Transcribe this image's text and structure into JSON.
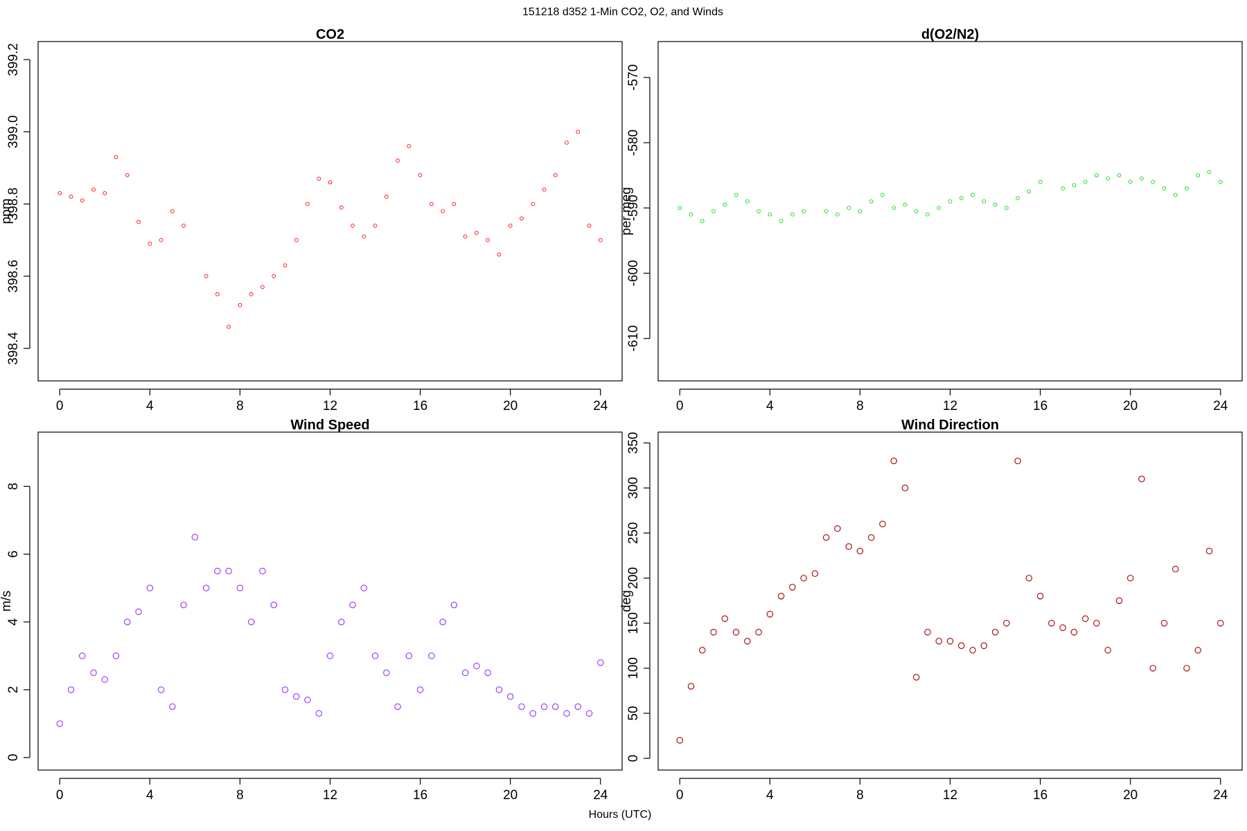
{
  "figure": {
    "suptitle": "151218   d352   1-Min CO2, O2, and Winds",
    "xlabel": "Hours (UTC)"
  },
  "chart_data": [
    {
      "type": "scatter",
      "title": "CO2",
      "ylabel": "ppm",
      "xlim": [
        -0.96,
        24.96
      ],
      "ylim": [
        398.31,
        399.25
      ],
      "xticks": [
        0,
        4,
        8,
        12,
        16,
        20,
        24
      ],
      "yticks": [
        398.4,
        398.6,
        398.8,
        399.0,
        399.2
      ],
      "ytick_labels": [
        "398.4",
        "398.6",
        "398.8",
        "399.0",
        "399.2"
      ],
      "color": "#ff0000",
      "marker_radius_hint": "small",
      "x": [
        0.0,
        0.5,
        1.0,
        1.5,
        2.0,
        2.5,
        3.0,
        3.5,
        4.0,
        4.5,
        5.0,
        5.5,
        6.5,
        7.0,
        7.5,
        8.0,
        8.5,
        9.0,
        9.5,
        10.0,
        10.5,
        11.0,
        11.5,
        12.0,
        12.5,
        13.0,
        13.5,
        14.0,
        14.5,
        15.0,
        15.5,
        16.0,
        16.5,
        17.0,
        17.5,
        18.0,
        18.5,
        19.0,
        19.5,
        20.0,
        20.5,
        21.0,
        21.5,
        22.0,
        22.5,
        23.0,
        23.5,
        24.0
      ],
      "y": [
        398.83,
        398.82,
        398.81,
        398.84,
        398.83,
        398.93,
        398.88,
        398.75,
        398.69,
        398.7,
        398.78,
        398.74,
        398.6,
        398.55,
        398.46,
        398.52,
        398.55,
        398.57,
        398.6,
        398.63,
        398.7,
        398.8,
        398.87,
        398.86,
        398.79,
        398.74,
        398.71,
        398.74,
        398.82,
        398.92,
        398.96,
        398.88,
        398.8,
        398.78,
        398.8,
        398.71,
        398.72,
        398.7,
        398.66,
        398.74,
        398.76,
        398.8,
        398.84,
        398.88,
        398.97,
        399.0,
        398.74,
        398.7
      ]
    },
    {
      "type": "scatter",
      "title": "d(O2/N2)",
      "ylabel": "per meg",
      "xlim": [
        -0.96,
        24.96
      ],
      "ylim": [
        -616.5,
        -564.5
      ],
      "xticks": [
        0,
        4,
        8,
        12,
        16,
        20,
        24
      ],
      "yticks": [
        -570,
        -580,
        -590,
        -600,
        -610
      ],
      "ytick_labels": [
        "-570",
        "-580",
        "-590",
        "-600",
        "-610"
      ],
      "color": "#00dd00",
      "marker_radius_hint": "small",
      "x": [
        0.0,
        0.5,
        1.0,
        1.5,
        2.0,
        2.5,
        3.0,
        3.5,
        4.0,
        4.5,
        5.0,
        5.5,
        6.5,
        7.0,
        7.5,
        8.0,
        8.5,
        9.0,
        9.5,
        10.0,
        10.5,
        11.0,
        11.5,
        12.0,
        12.5,
        13.0,
        13.5,
        14.0,
        14.5,
        15.0,
        15.5,
        16.0,
        17.0,
        17.5,
        18.0,
        18.5,
        19.0,
        19.5,
        20.0,
        20.5,
        21.0,
        21.5,
        22.0,
        22.5,
        23.0,
        23.5,
        24.0
      ],
      "y": [
        -590.0,
        -591.0,
        -592.0,
        -590.5,
        -589.5,
        -588.0,
        -589.0,
        -590.5,
        -591.0,
        -592.0,
        -591.0,
        -590.5,
        -590.5,
        -591.0,
        -590.0,
        -590.5,
        -589.0,
        -588.0,
        -590.0,
        -589.5,
        -590.5,
        -591.0,
        -590.0,
        -589.0,
        -588.5,
        -588.0,
        -589.0,
        -589.5,
        -590.0,
        -588.5,
        -587.5,
        -586.0,
        -587.0,
        -586.5,
        -586.0,
        -585.0,
        -585.5,
        -585.0,
        -586.0,
        -585.5,
        -586.0,
        -587.0,
        -588.0,
        -587.0,
        -585.0,
        -584.5,
        -586.0
      ]
    },
    {
      "type": "scatter",
      "title": "Wind Speed",
      "ylabel": "m/s",
      "xlim": [
        -0.96,
        24.96
      ],
      "ylim": [
        -0.37,
        9.6
      ],
      "xticks": [
        0,
        4,
        8,
        12,
        16,
        20,
        24
      ],
      "yticks": [
        0,
        2,
        4,
        6,
        8
      ],
      "ytick_labels": [
        "0",
        "2",
        "4",
        "6",
        "8"
      ],
      "color": "#9b30ff",
      "marker_radius_hint": "large",
      "x": [
        0.0,
        0.5,
        1.0,
        1.5,
        2.0,
        2.5,
        3.0,
        3.5,
        4.0,
        4.5,
        5.0,
        5.5,
        6.0,
        6.5,
        7.0,
        7.5,
        8.0,
        8.5,
        9.0,
        9.5,
        10.0,
        10.5,
        11.0,
        11.5,
        12.0,
        12.5,
        13.0,
        13.5,
        14.0,
        14.5,
        15.0,
        15.5,
        16.0,
        16.5,
        17.0,
        17.5,
        18.0,
        18.5,
        19.0,
        19.5,
        20.0,
        20.5,
        21.0,
        21.5,
        22.0,
        22.5,
        23.0,
        23.5,
        24.0
      ],
      "y": [
        1.0,
        2.0,
        3.0,
        2.5,
        2.3,
        3.0,
        4.0,
        4.3,
        5.0,
        2.0,
        1.5,
        4.5,
        6.5,
        5.0,
        5.5,
        5.5,
        5.0,
        4.0,
        5.5,
        4.5,
        2.0,
        1.8,
        1.7,
        1.3,
        3.0,
        4.0,
        4.5,
        5.0,
        3.0,
        2.5,
        1.5,
        3.0,
        2.0,
        3.0,
        4.0,
        4.5,
        2.5,
        2.7,
        2.5,
        2.0,
        1.8,
        1.5,
        1.3,
        1.5,
        1.5,
        1.3,
        1.5,
        1.3,
        2.8
      ]
    },
    {
      "type": "scatter",
      "title": "Wind Direction",
      "ylabel": "deg",
      "xlim": [
        -0.96,
        24.96
      ],
      "ylim": [
        -13,
        362
      ],
      "xticks": [
        0,
        4,
        8,
        12,
        16,
        20,
        24
      ],
      "yticks": [
        0,
        50,
        100,
        150,
        200,
        250,
        300,
        350
      ],
      "ytick_labels": [
        "0",
        "50",
        "100",
        "150",
        "200",
        "250",
        "300",
        "350"
      ],
      "color": "#a00000",
      "marker_radius_hint": "large",
      "x": [
        0.0,
        0.5,
        1.0,
        1.5,
        2.0,
        2.5,
        3.0,
        3.5,
        4.0,
        4.5,
        5.0,
        5.5,
        6.0,
        6.5,
        7.0,
        7.5,
        8.0,
        8.5,
        9.0,
        9.5,
        10.0,
        10.5,
        11.0,
        11.5,
        12.0,
        12.5,
        13.0,
        13.5,
        14.0,
        14.5,
        15.0,
        15.5,
        16.0,
        16.5,
        17.0,
        17.5,
        18.0,
        18.5,
        19.0,
        19.5,
        20.0,
        20.5,
        21.0,
        21.5,
        22.0,
        22.5,
        23.0,
        23.5,
        24.0
      ],
      "y": [
        20,
        80,
        120,
        140,
        155,
        140,
        130,
        140,
        160,
        180,
        190,
        200,
        205,
        245,
        255,
        235,
        230,
        245,
        260,
        330,
        300,
        90,
        140,
        130,
        130,
        125,
        120,
        125,
        140,
        150,
        330,
        200,
        180,
        150,
        145,
        140,
        155,
        150,
        120,
        175,
        200,
        310,
        100,
        150,
        210,
        100,
        120,
        230,
        150
      ]
    }
  ]
}
